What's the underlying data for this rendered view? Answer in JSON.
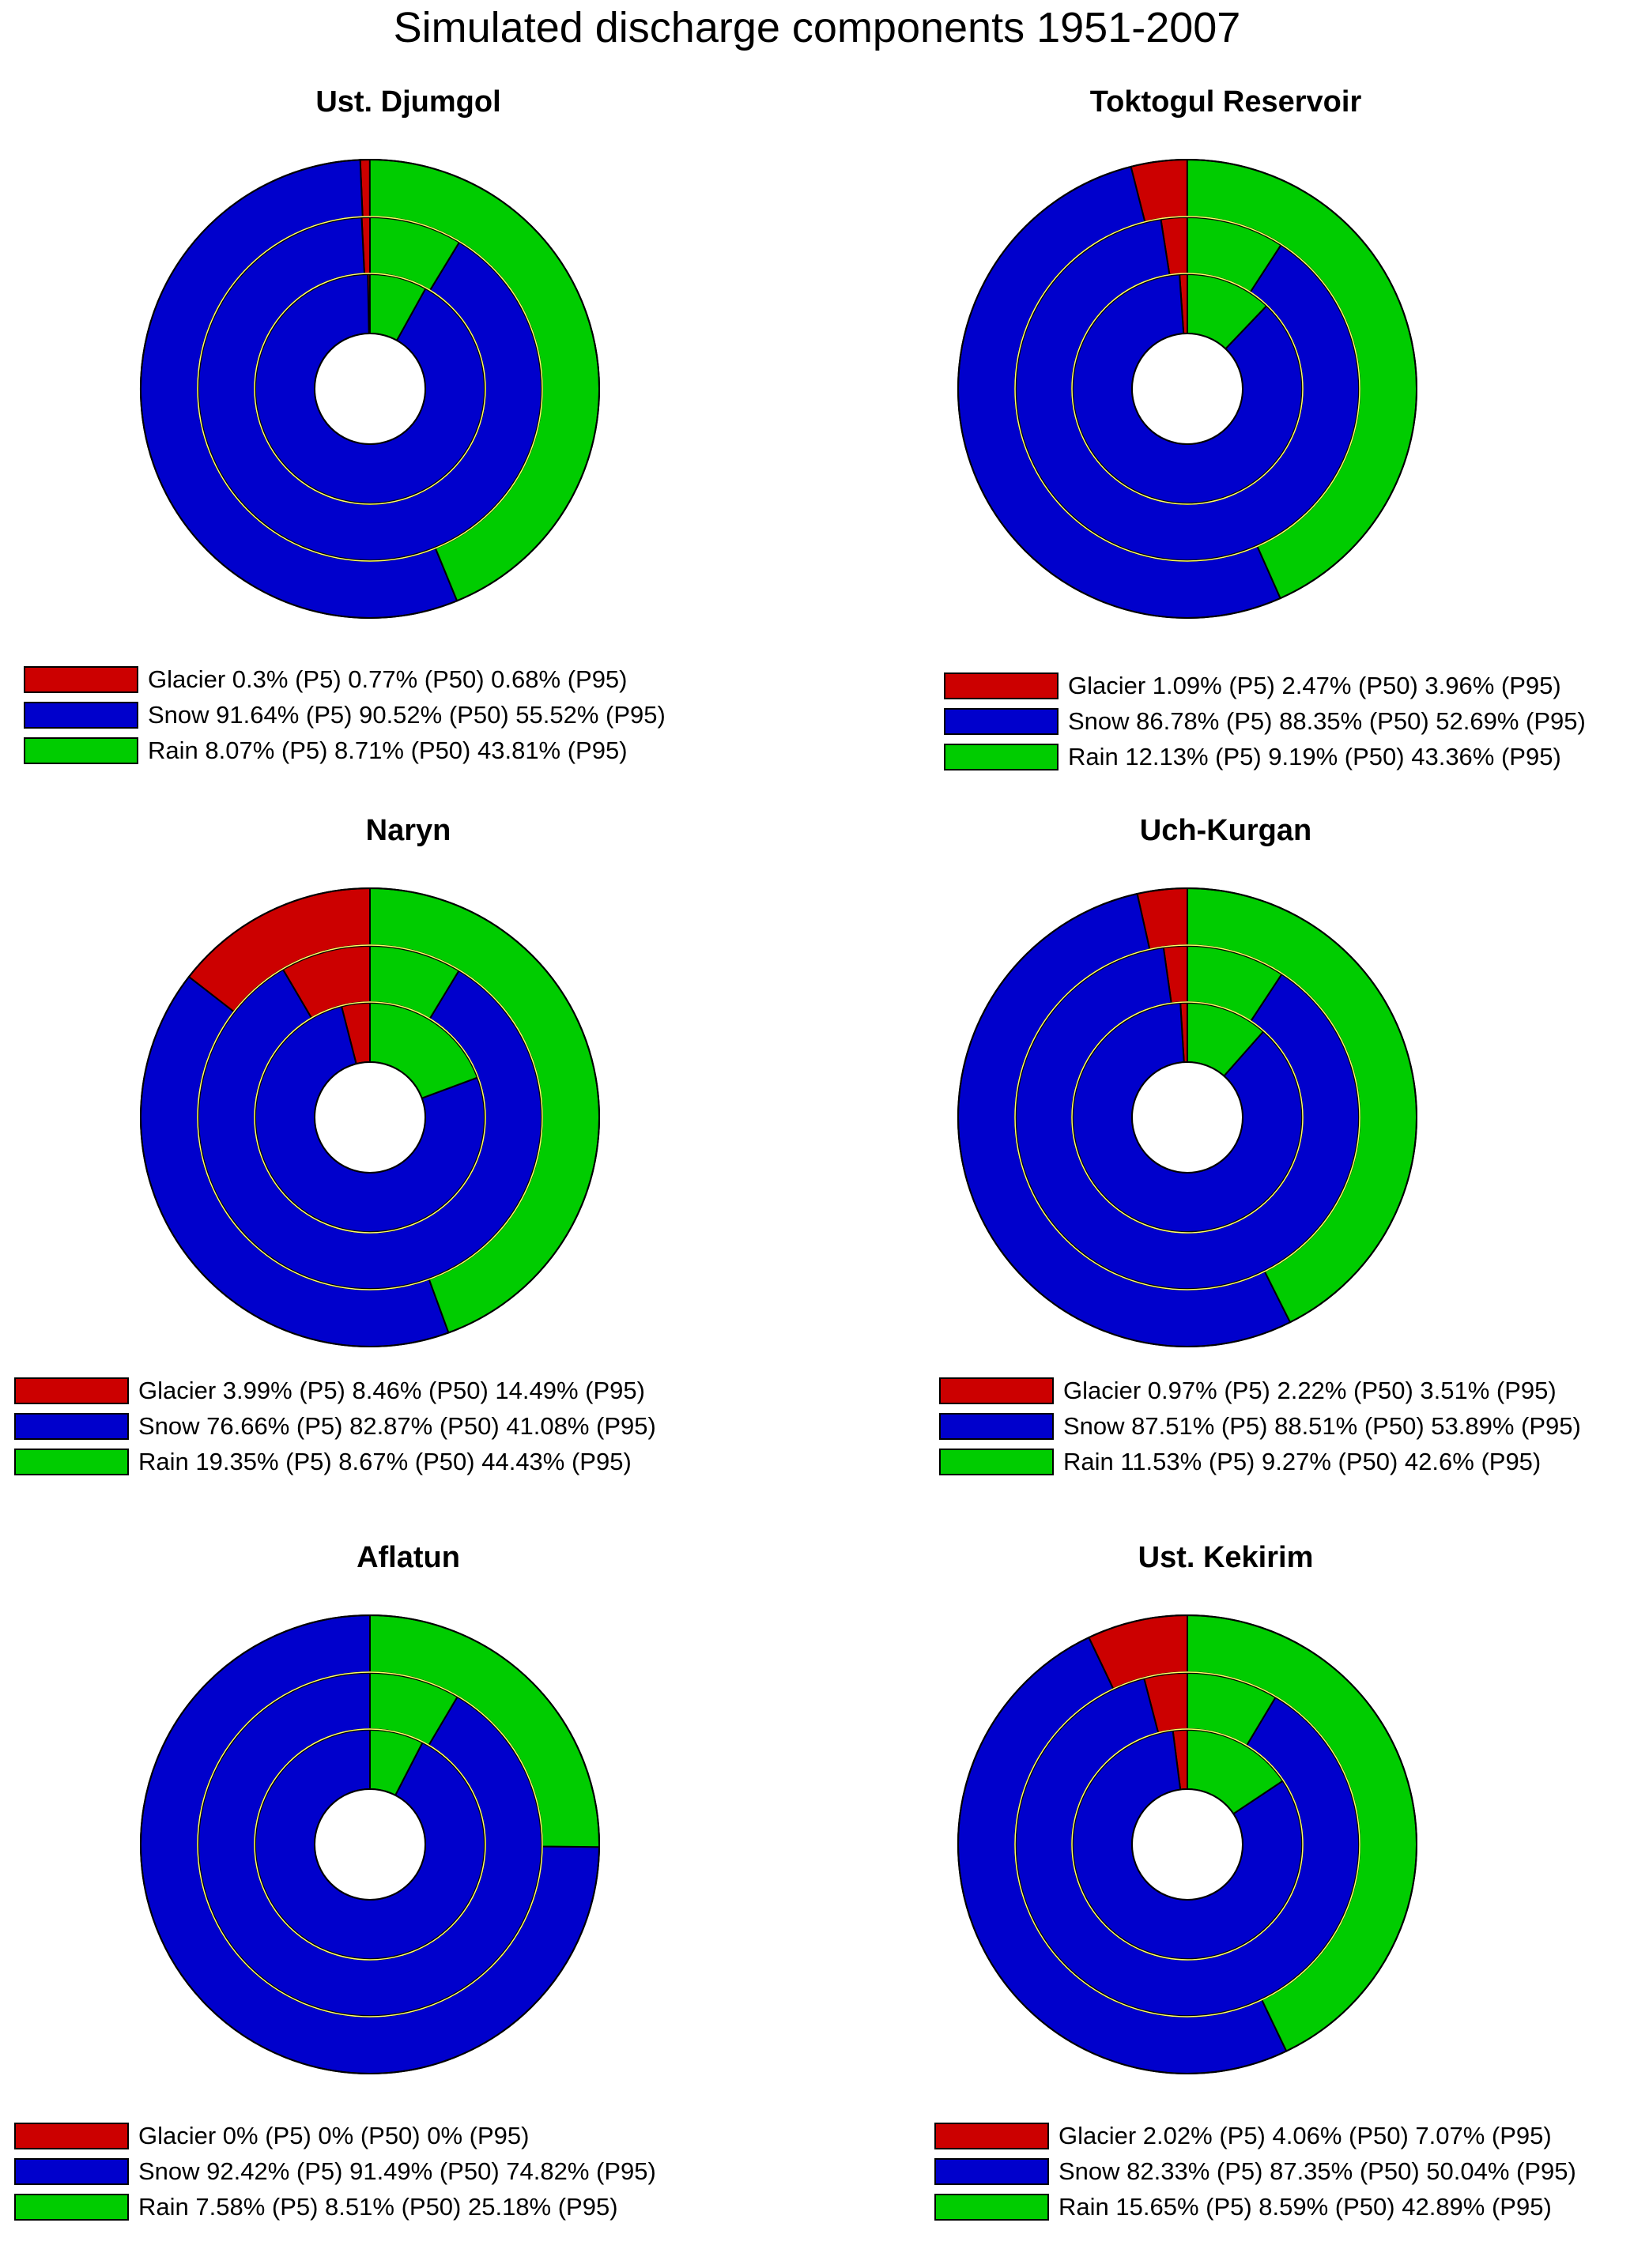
{
  "title": "Simulated discharge components 1951-2007",
  "colors": {
    "Glacier": "#cc0000",
    "Snow": "#0000cc",
    "Rain": "#00cc00"
  },
  "chart_data": [
    {
      "type": "pie",
      "title": "Ust. Djumgol",
      "rings": [
        "P5",
        "P50",
        "P95"
      ],
      "series": [
        {
          "name": "Glacier",
          "values": [
            0.3,
            0.77,
            0.68
          ]
        },
        {
          "name": "Snow",
          "values": [
            91.64,
            90.52,
            55.52
          ]
        },
        {
          "name": "Rain",
          "values": [
            8.07,
            8.71,
            43.81
          ]
        }
      ],
      "legend": [
        "Glacier 0.3% (P5) 0.77% (P50) 0.68% (P95)",
        "Snow 91.64% (P5) 90.52% (P50) 55.52% (P95)",
        "Rain 8.07% (P5) 8.71% (P50) 43.81% (P95)"
      ]
    },
    {
      "type": "pie",
      "title": "Toktogul Reservoir",
      "rings": [
        "P5",
        "P50",
        "P95"
      ],
      "series": [
        {
          "name": "Glacier",
          "values": [
            1.09,
            2.47,
            3.96
          ]
        },
        {
          "name": "Snow",
          "values": [
            86.78,
            88.35,
            52.69
          ]
        },
        {
          "name": "Rain",
          "values": [
            12.13,
            9.19,
            43.36
          ]
        }
      ],
      "legend": [
        "Glacier 1.09% (P5) 2.47% (P50) 3.96% (P95)",
        "Snow 86.78% (P5) 88.35% (P50) 52.69% (P95)",
        "Rain 12.13% (P5) 9.19% (P50) 43.36% (P95)"
      ]
    },
    {
      "type": "pie",
      "title": "Naryn",
      "rings": [
        "P5",
        "P50",
        "P95"
      ],
      "series": [
        {
          "name": "Glacier",
          "values": [
            3.99,
            8.46,
            14.49
          ]
        },
        {
          "name": "Snow",
          "values": [
            76.66,
            82.87,
            41.08
          ]
        },
        {
          "name": "Rain",
          "values": [
            19.35,
            8.67,
            44.43
          ]
        }
      ],
      "legend": [
        "Glacier 3.99% (P5) 8.46% (P50) 14.49% (P95)",
        "Snow 76.66% (P5) 82.87% (P50) 41.08% (P95)",
        "Rain 19.35% (P5) 8.67% (P50) 44.43% (P95)"
      ]
    },
    {
      "type": "pie",
      "title": "Uch-Kurgan",
      "rings": [
        "P5",
        "P50",
        "P95"
      ],
      "series": [
        {
          "name": "Glacier",
          "values": [
            0.97,
            2.22,
            3.51
          ]
        },
        {
          "name": "Snow",
          "values": [
            87.51,
            88.51,
            53.89
          ]
        },
        {
          "name": "Rain",
          "values": [
            11.53,
            9.27,
            42.6
          ]
        }
      ],
      "legend": [
        "Glacier 0.97% (P5) 2.22% (P50) 3.51% (P95)",
        "Snow 87.51% (P5) 88.51% (P50) 53.89% (P95)",
        "Rain 11.53% (P5) 9.27% (P50) 42.6% (P95)"
      ]
    },
    {
      "type": "pie",
      "title": "Aflatun",
      "rings": [
        "P5",
        "P50",
        "P95"
      ],
      "series": [
        {
          "name": "Glacier",
          "values": [
            0,
            0,
            0
          ]
        },
        {
          "name": "Snow",
          "values": [
            92.42,
            91.49,
            74.82
          ]
        },
        {
          "name": "Rain",
          "values": [
            7.58,
            8.51,
            25.18
          ]
        }
      ],
      "legend": [
        "Glacier 0% (P5) 0% (P50) 0% (P95)",
        "Snow 92.42% (P5) 91.49% (P50) 74.82% (P95)",
        "Rain 7.58% (P5) 8.51% (P50) 25.18% (P95)"
      ]
    },
    {
      "type": "pie",
      "title": "Ust. Kekirim",
      "rings": [
        "P5",
        "P50",
        "P95"
      ],
      "series": [
        {
          "name": "Glacier",
          "values": [
            2.02,
            4.06,
            7.07
          ]
        },
        {
          "name": "Snow",
          "values": [
            82.33,
            87.35,
            50.04
          ]
        },
        {
          "name": "Rain",
          "values": [
            15.65,
            8.59,
            42.89
          ]
        }
      ],
      "legend": [
        "Glacier 2.02% (P5) 4.06% (P50) 7.07% (P95)",
        "Snow 82.33% (P5) 87.35% (P50) 50.04% (P95)",
        "Rain 15.65% (P5) 8.59% (P50) 42.89% (P95)"
      ]
    }
  ]
}
